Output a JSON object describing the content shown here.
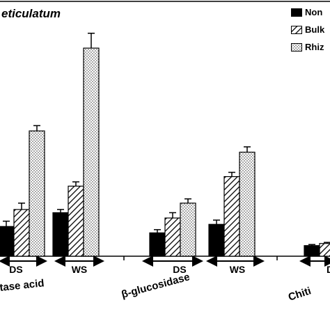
{
  "title": "eticulatum",
  "legend": [
    {
      "label": "Non",
      "pattern": "solid"
    },
    {
      "label": "Bulk",
      "pattern": "hatch"
    },
    {
      "label": "Rhiz",
      "pattern": "dots"
    }
  ],
  "chart_data": {
    "type": "bar",
    "title": "eticulatum",
    "legend_position": "top-right",
    "grid": false,
    "ylim": [
      0,
      100
    ],
    "series": [
      {
        "name": "Non",
        "pattern": "solid",
        "color": "#000000"
      },
      {
        "name": "Bulk",
        "pattern": "hatch",
        "color": "#000000"
      },
      {
        "name": "Rhiz",
        "pattern": "dots",
        "color": "#000000"
      }
    ],
    "groups": [
      {
        "enzyme": "tase acid",
        "season": "DS",
        "values": [
          14,
          22,
          59
        ],
        "errors": [
          2.5,
          3,
          2.5
        ]
      },
      {
        "enzyme": "tase acid",
        "season": "WS",
        "values": [
          20.5,
          33,
          98
        ],
        "errors": [
          1.5,
          2,
          7
        ]
      },
      {
        "enzyme": "β-glucosidase",
        "season": "DS",
        "values": [
          11,
          18,
          25
        ],
        "errors": [
          1.5,
          2.5,
          2
        ]
      },
      {
        "enzyme": "β-glucosidase",
        "season": "WS",
        "values": [
          15,
          37.5,
          49
        ],
        "errors": [
          2,
          2,
          2.5
        ]
      },
      {
        "enzyme": "Chiti",
        "season": "DS",
        "values": [
          5,
          6,
          0
        ],
        "errors": [
          0.5,
          0.5,
          0
        ]
      }
    ],
    "enzyme_labels": [
      "tase acid",
      "β-glucosidase",
      "Chiti"
    ],
    "season_labels": [
      "DS",
      "WS",
      "DS",
      "WS",
      "D"
    ]
  }
}
